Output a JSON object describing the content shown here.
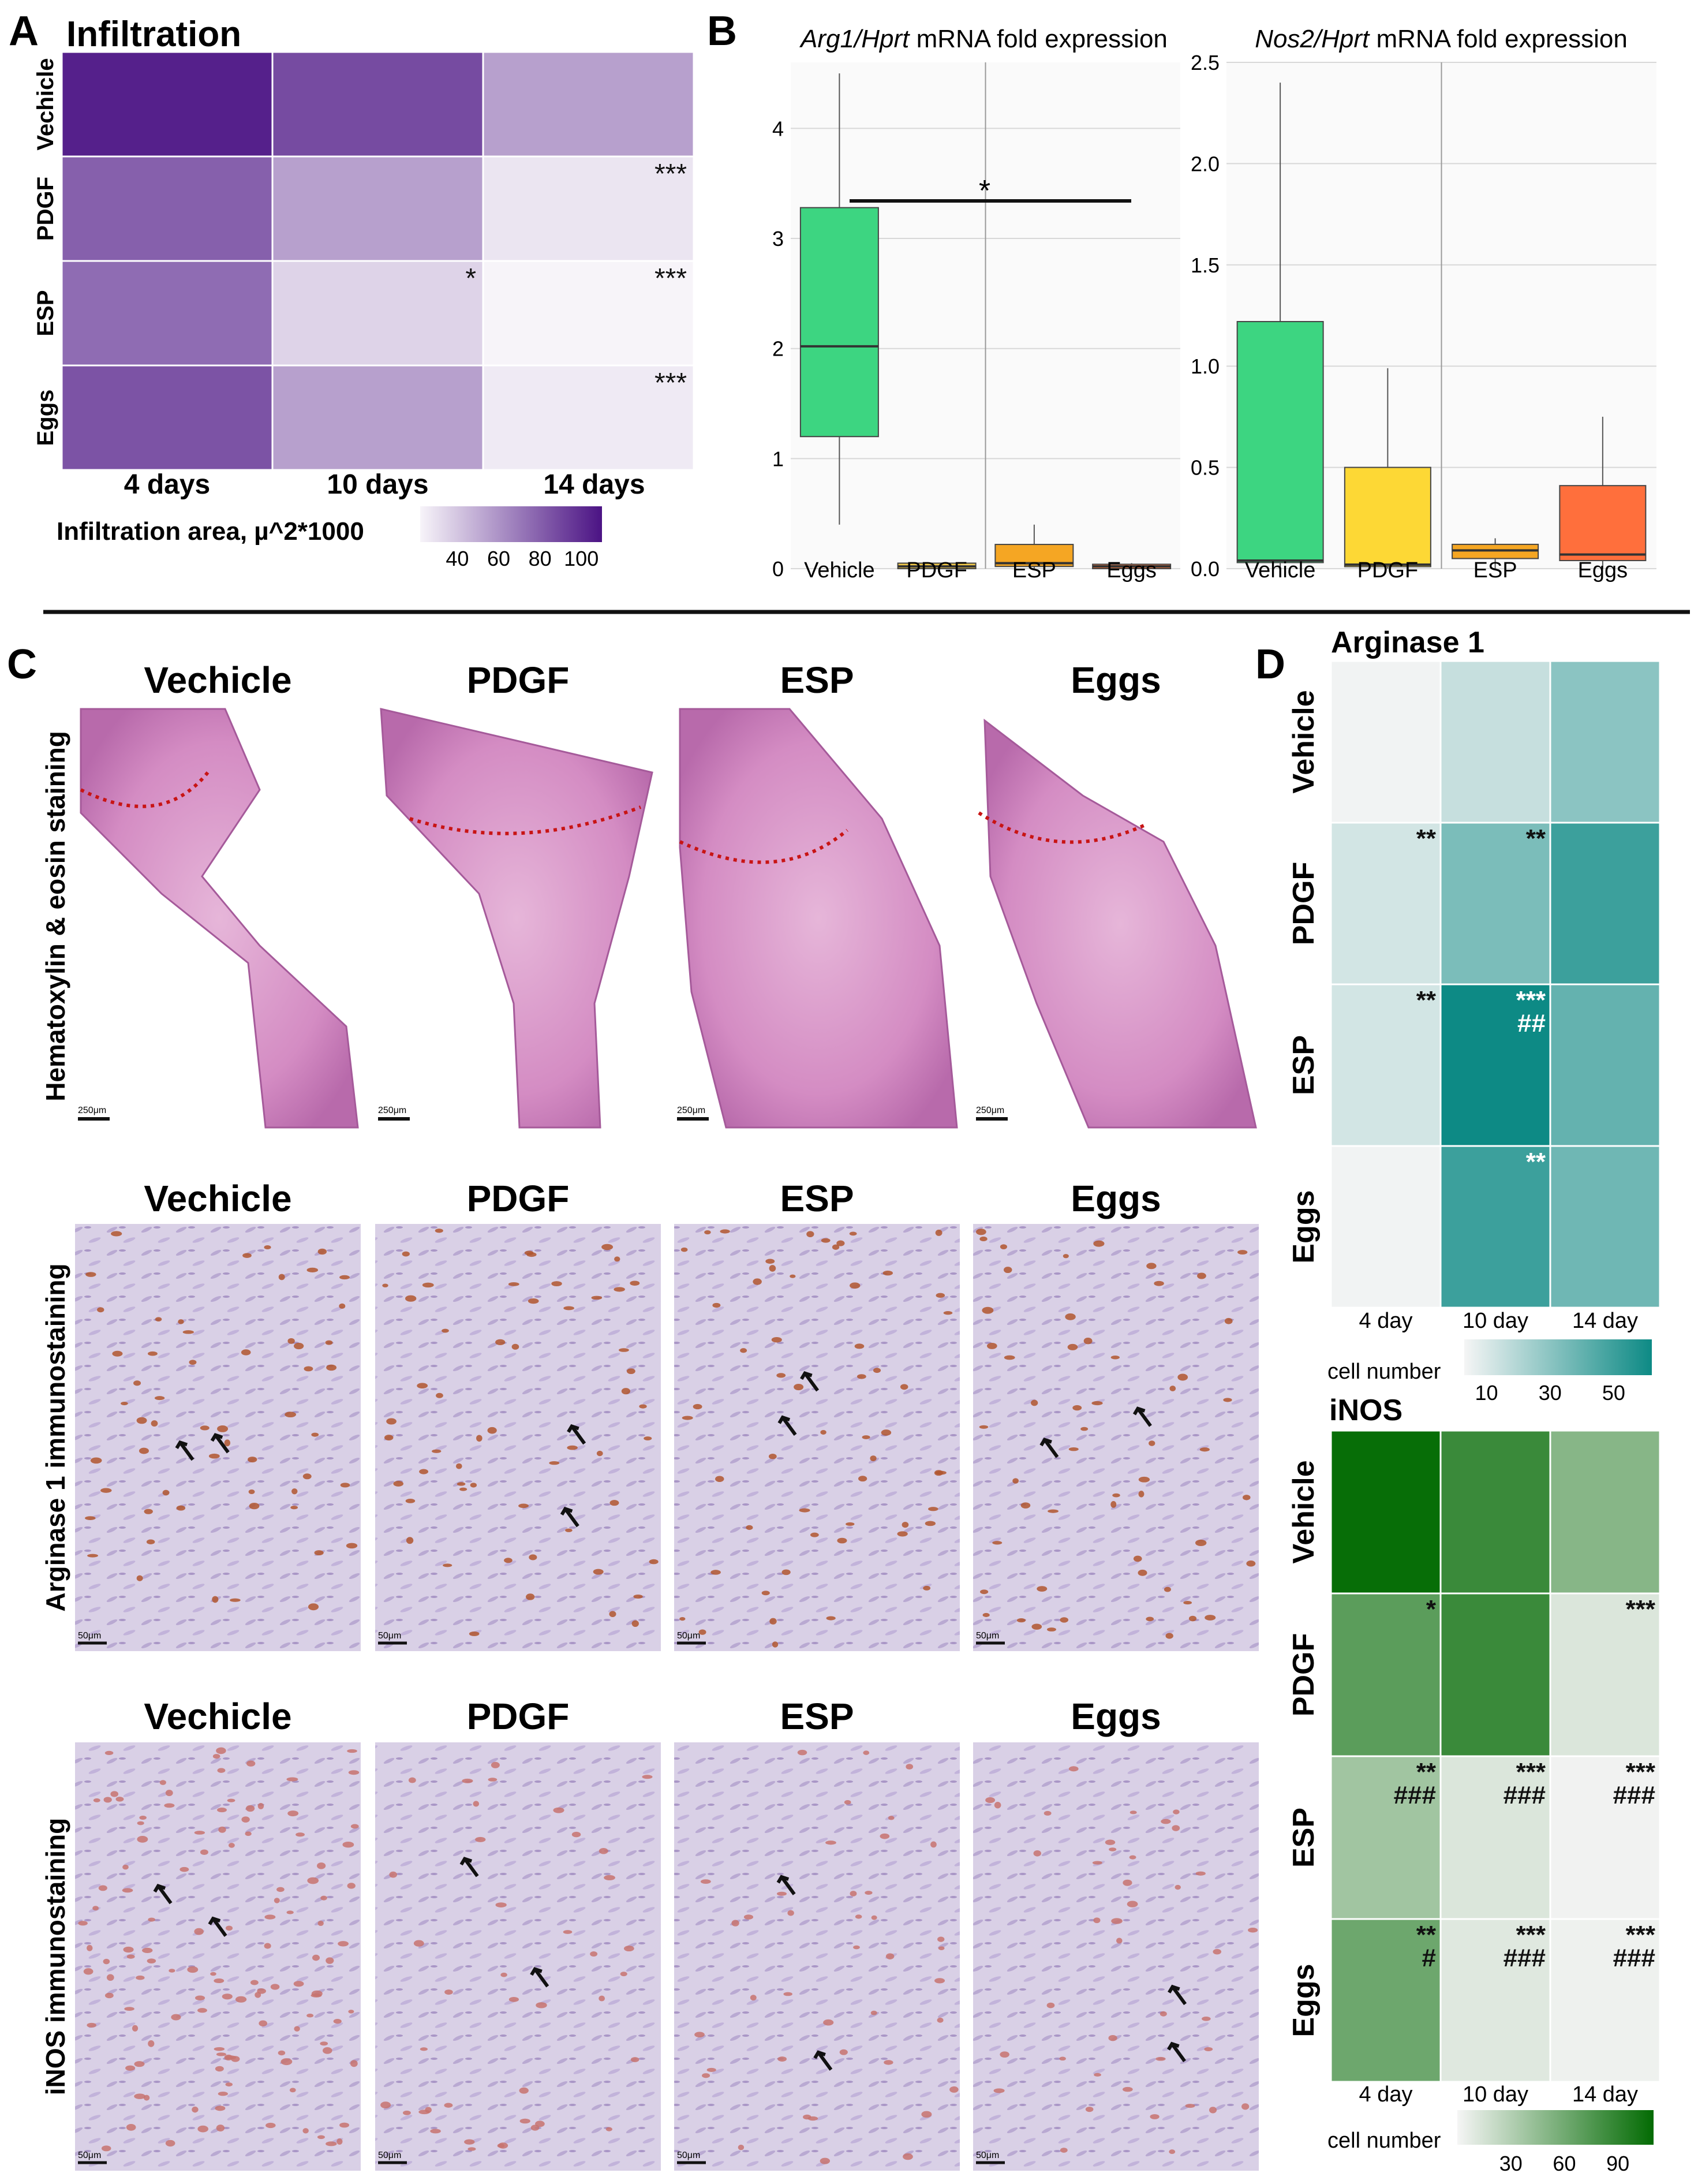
{
  "panels": {
    "A": {
      "letter": "A",
      "title": "Infiltration",
      "rows": [
        "Vechicle",
        "PDGF",
        "ESP",
        "Eggs"
      ],
      "cols": [
        "4 days",
        "10 days",
        "14 days"
      ],
      "values": [
        [
          105,
          88,
          55
        ],
        [
          80,
          55,
          28
        ],
        [
          75,
          35,
          22
        ],
        [
          85,
          55,
          26
        ]
      ],
      "marks": [
        [
          "",
          "",
          ""
        ],
        [
          "",
          "",
          "***"
        ],
        [
          "",
          "*",
          "***"
        ],
        [
          "",
          "",
          "***"
        ]
      ],
      "colorbar": {
        "label": "Infiltration area, µ^2*1000",
        "ticks": [
          40,
          60,
          80,
          100
        ],
        "range": [
          22,
          110
        ],
        "low": "#f7f4f9",
        "high": "#4b1384"
      }
    },
    "B": {
      "letter": "B",
      "significance": "*",
      "plots": [
        {
          "title_italic": "Arg1/Hprt",
          "title_rest": " mRNA fold expression",
          "ylim": [
            0,
            4.6
          ],
          "yticks": [
            0,
            1,
            2,
            3,
            4
          ],
          "boxes": [
            {
              "label": "Vehicle",
              "min": 0.4,
              "q1": 1.2,
              "median": 2.02,
              "q3": 3.28,
              "max": 4.5,
              "color": "#3dd581"
            },
            {
              "label": "PDGF",
              "min": 0.0,
              "q1": 0.0,
              "median": 0.02,
              "q3": 0.05,
              "max": 0.05,
              "color": "#f2c94a"
            },
            {
              "label": "ESP",
              "min": 0.0,
              "q1": 0.02,
              "median": 0.05,
              "q3": 0.22,
              "max": 0.4,
              "color": "#f5a623"
            },
            {
              "label": "Eggs",
              "min": 0.0,
              "q1": 0.0,
              "median": 0.02,
              "q3": 0.04,
              "max": 0.05,
              "color": "#f2743a"
            }
          ]
        },
        {
          "title_italic": "Nos2/Hprt",
          "title_rest": " mRNA fold expression",
          "ylim": [
            0,
            2.5
          ],
          "yticks": [
            "0.0",
            "0.5",
            "1.0",
            "1.5",
            "2.0",
            "2.5"
          ],
          "boxes": [
            {
              "label": "Vehicle",
              "min": 0.0,
              "q1": 0.03,
              "median": 0.04,
              "q3": 1.22,
              "max": 2.4,
              "color": "#3dd581"
            },
            {
              "label": "PDGF",
              "min": 0.0,
              "q1": 0.01,
              "median": 0.02,
              "q3": 0.5,
              "max": 0.99,
              "color": "#fdd835"
            },
            {
              "label": "ESP",
              "min": 0.0,
              "q1": 0.05,
              "median": 0.09,
              "q3": 0.12,
              "max": 0.15,
              "color": "#f5a623"
            },
            {
              "label": "Eggs",
              "min": 0.0,
              "q1": 0.04,
              "median": 0.07,
              "q3": 0.41,
              "max": 0.75,
              "color": "#ff6f3c"
            }
          ]
        }
      ]
    },
    "C": {
      "letter": "C",
      "groups": [
        "Vechicle",
        "PDGF",
        "ESP",
        "Eggs"
      ],
      "rows": [
        {
          "label": "Hematoxylin & eosin staining",
          "scale": "250μm",
          "type": "he"
        },
        {
          "label": "Arginase 1 immunostaining",
          "scale": "50μm",
          "type": "arg"
        },
        {
          "label": "iNOS immunostaining",
          "scale": "50μm",
          "type": "inos"
        }
      ]
    },
    "D": {
      "letter": "D",
      "heatmaps": [
        {
          "title": "Arginase 1",
          "rows": [
            "Vehicle",
            "PDGF",
            "ESP",
            "Eggs"
          ],
          "cols": [
            "4 day",
            "10 day",
            "14 day"
          ],
          "values": [
            [
              4,
              15,
              30
            ],
            [
              12,
              34,
              50
            ],
            [
              12,
              62,
              40
            ],
            [
              4,
              50,
              37
            ]
          ],
          "marks": [
            [
              "",
              "",
              ""
            ],
            [
              "**",
              "**",
              ""
            ],
            [
              "**",
              "***\n##",
              ""
            ],
            [
              "",
              "**",
              ""
            ]
          ],
          "mark_colors": [
            [
              "",
              "",
              ""
            ],
            [
              "#111",
              "#111",
              ""
            ],
            [
              "#111",
              "#ffffff",
              ""
            ],
            [
              "",
              "#ffffff",
              ""
            ]
          ],
          "colorbar": {
            "label": "cell number",
            "ticks": [
              10,
              30,
              50
            ],
            "range": [
              3,
              62
            ],
            "low": "#f5f5f5",
            "high": "#0d8a85"
          }
        },
        {
          "title": "iNOS",
          "rows": [
            "Vehicle",
            "PDGF",
            "ESP",
            "Eggs"
          ],
          "cols": [
            "4 day",
            "10 day",
            "14 day"
          ],
          "values": [
            [
              108,
              85,
              50
            ],
            [
              70,
              85,
              12
            ],
            [
              38,
              12,
              2
            ],
            [
              62,
              10,
              3
            ]
          ],
          "marks": [
            [
              "",
              "",
              ""
            ],
            [
              "*",
              "",
              "***"
            ],
            [
              "**\n###",
              "***\n###",
              "***\n###"
            ],
            [
              "**\n#",
              "***\n###",
              "***\n###"
            ]
          ],
          "mark_colors": [
            [
              "",
              "",
              ""
            ],
            [
              "#111",
              "",
              "#111"
            ],
            [
              "#111",
              "#111",
              "#111"
            ],
            [
              "#111",
              "#111",
              "#111"
            ]
          ],
          "colorbar": {
            "label": "cell number",
            "ticks": [
              30,
              60,
              90
            ],
            "range": [
              0,
              110
            ],
            "low": "#f5f5f5",
            "high": "#036b03"
          }
        }
      ]
    }
  }
}
